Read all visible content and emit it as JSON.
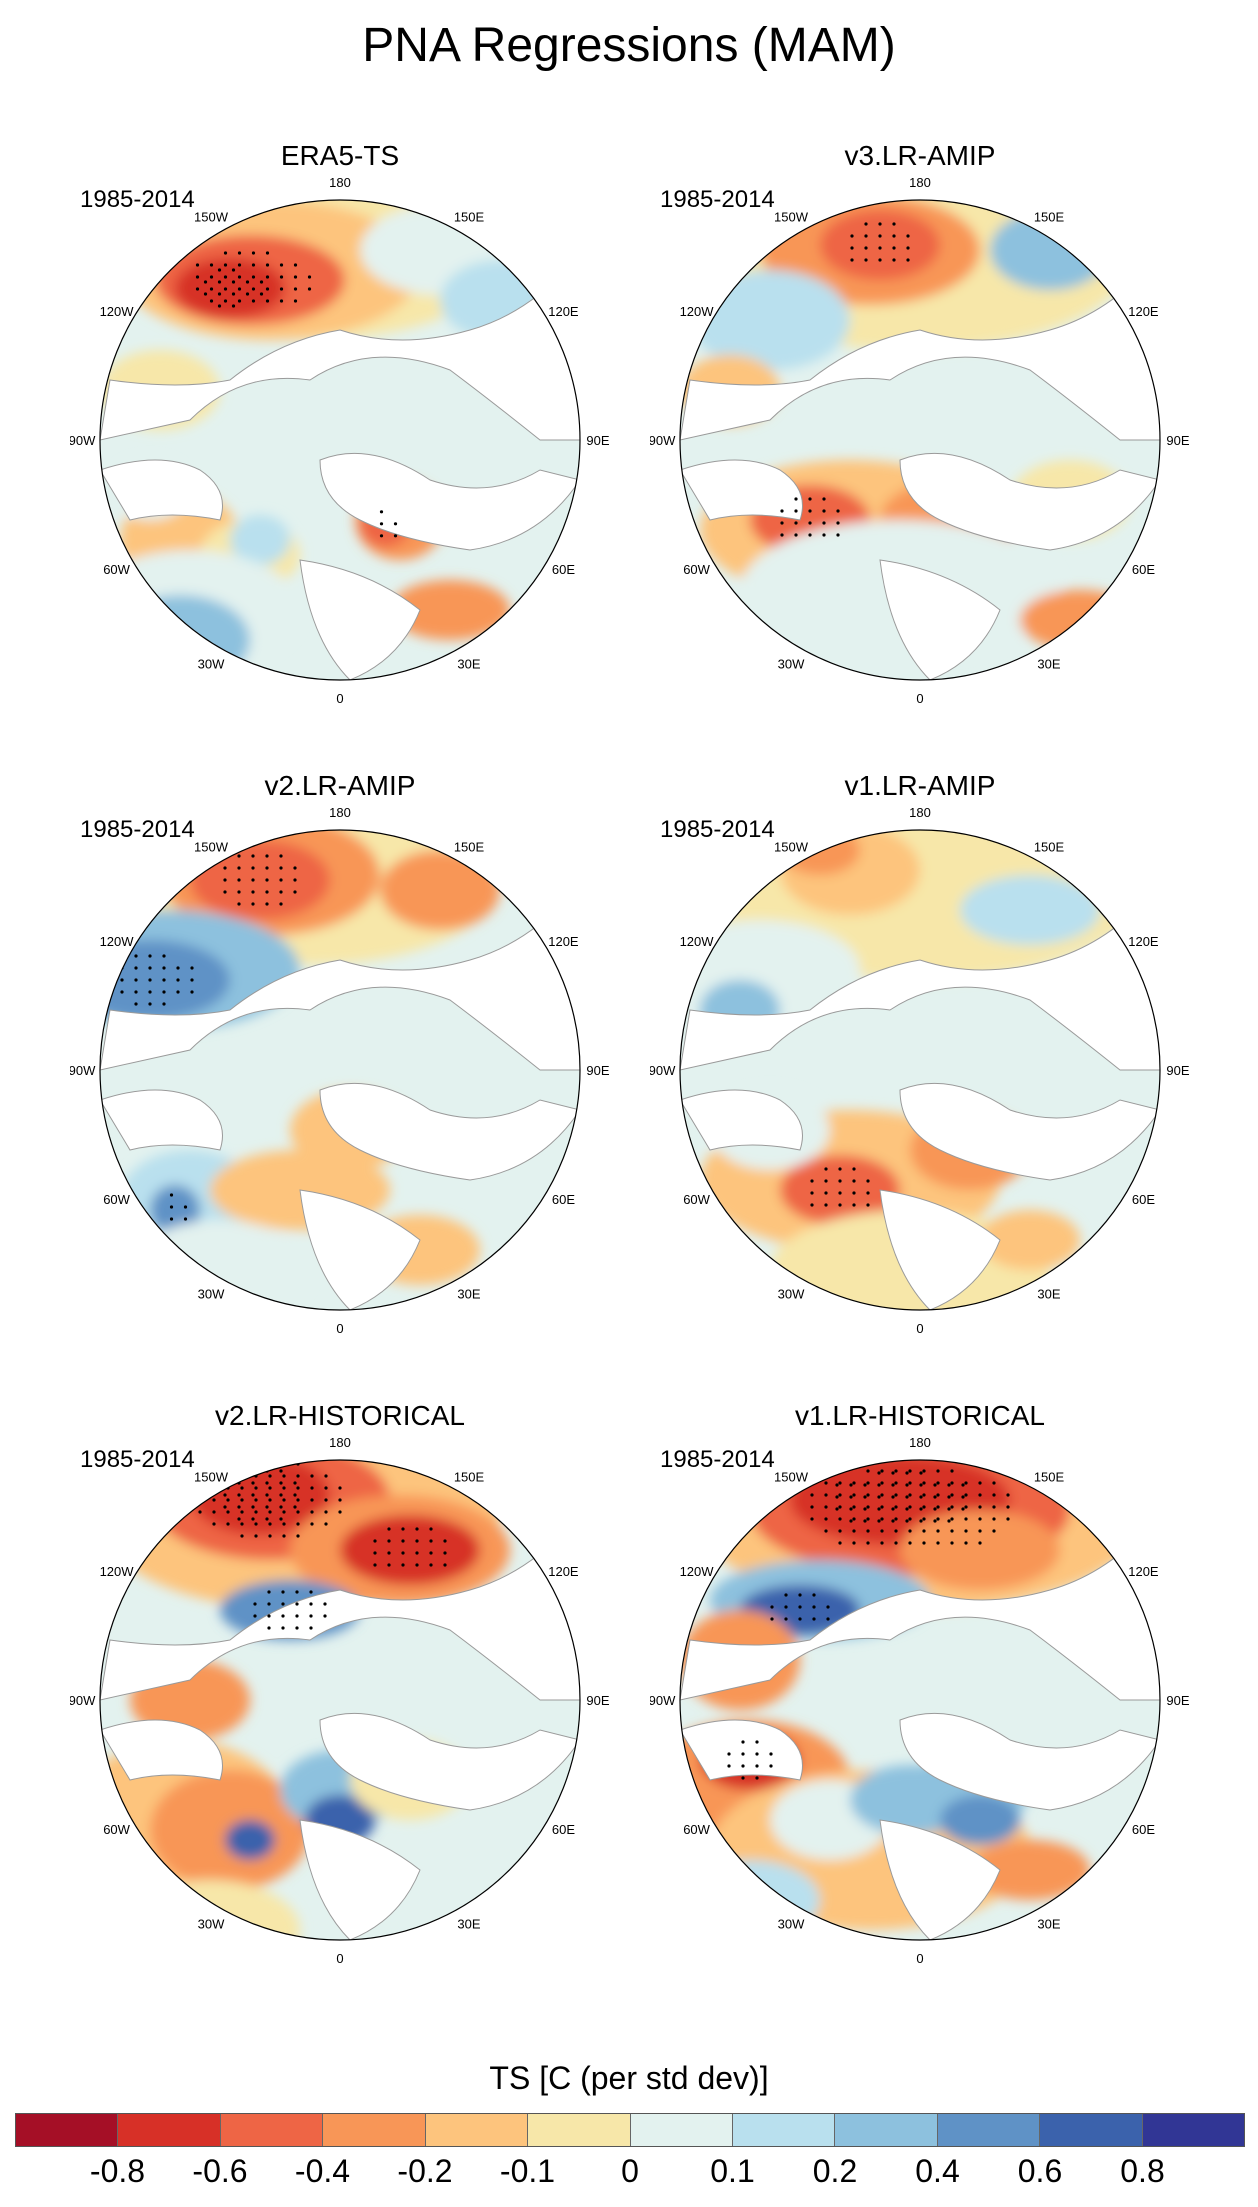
{
  "title": "PNA Regressions (MAM)",
  "chart_data": {
    "type": "polar-stereographic-map-panels",
    "variable": "TS",
    "units_label": "TS [C (per std dev)]",
    "panels": [
      {
        "title": "ERA5-TS",
        "period": "1985-2014",
        "pattern": "era5"
      },
      {
        "title": "v3.LR-AMIP",
        "period": "1985-2014",
        "pattern": "v3amip"
      },
      {
        "title": "v2.LR-AMIP",
        "period": "1985-2014",
        "pattern": "v2amip"
      },
      {
        "title": "v1.LR-AMIP",
        "period": "1985-2014",
        "pattern": "v1amip"
      },
      {
        "title": "v2.LR-HISTORICAL",
        "period": "1985-2014",
        "pattern": "v2hist"
      },
      {
        "title": "v1.LR-HISTORICAL",
        "period": "1985-2014",
        "pattern": "v1hist"
      }
    ],
    "longitude_labels": [
      "180",
      "150E",
      "120E",
      "90E",
      "60E",
      "30E",
      "0",
      "30W",
      "60W",
      "90W",
      "120W",
      "150W"
    ],
    "colorbar": {
      "levels": [
        "-0.8",
        "-0.6",
        "-0.4",
        "-0.2",
        "-0.1",
        "0",
        "0.1",
        "0.2",
        "0.4",
        "0.6",
        "0.8"
      ],
      "colors": [
        "#a50f26",
        "#d73027",
        "#ee6545",
        "#f89657",
        "#fdc47d",
        "#f7e7a9",
        "#e3f2ef",
        "#b9e0ee",
        "#8dc1de",
        "#5f92c6",
        "#3b62ac",
        "#313695"
      ]
    }
  }
}
